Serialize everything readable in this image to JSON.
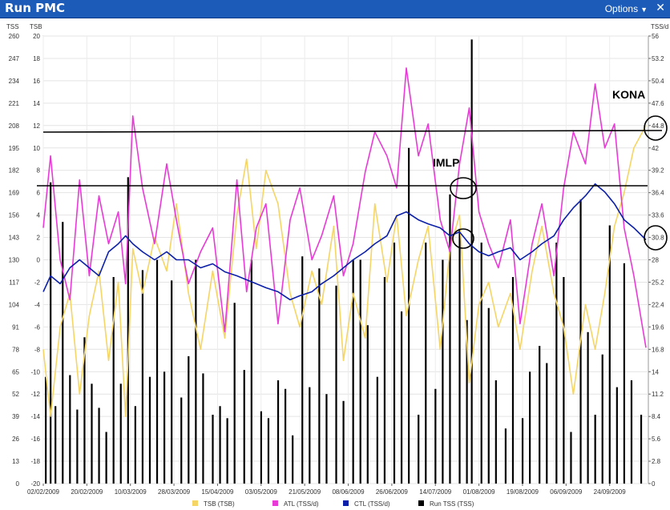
{
  "window": {
    "title": "Run PMC",
    "options_label": "Options",
    "close_glyph": "✕"
  },
  "chart_data": {
    "type": "line",
    "axes": {
      "tss_left": {
        "label": "TSS",
        "min": 0,
        "max": 260,
        "ticks": [
          0,
          13,
          26,
          39,
          52,
          65,
          78,
          91,
          104,
          117,
          130,
          143,
          156,
          169,
          182,
          195,
          208,
          221,
          234,
          247,
          260
        ]
      },
      "tsb_left": {
        "label": "TSB",
        "min": -20,
        "max": 20,
        "ticks": [
          -20,
          -18,
          -16,
          -14,
          -12,
          -10,
          -8,
          -6,
          -4,
          -2,
          0,
          2,
          4,
          6,
          8,
          10,
          12,
          14,
          16,
          18,
          20
        ]
      },
      "tssd_right": {
        "label": "TSS/d",
        "min": 0,
        "max": 56,
        "ticks": [
          "0",
          "2.8",
          "5.6",
          "8.4",
          "11.2",
          "14",
          "16.8",
          "19.6",
          "22.4",
          "25.2",
          "28",
          "30.8",
          "33.6",
          "36.4",
          "39.2",
          "42",
          "44.8",
          "47.6",
          "50.4",
          "53.2",
          "56"
        ]
      }
    },
    "x_range": [
      "2009-02-02",
      "2009-10-10"
    ],
    "x_tick_labels": [
      "02/02/2009",
      "20/02/2009",
      "10/03/2009",
      "28/03/2009",
      "15/04/2009",
      "03/05/2009",
      "21/05/2009",
      "08/06/2009",
      "26/06/2009",
      "14/07/2009",
      "01/08/2009",
      "19/08/2009",
      "06/09/2009",
      "24/09/2009"
    ],
    "series": [
      {
        "name": "TSB (TSB)",
        "color": "#f5d565",
        "axis": "tsb_left",
        "x": [
          "2009-02-02",
          "2009-02-05",
          "2009-02-09",
          "2009-02-13",
          "2009-02-17",
          "2009-02-21",
          "2009-02-25",
          "2009-03-01",
          "2009-03-05",
          "2009-03-08",
          "2009-03-11",
          "2009-03-15",
          "2009-03-20",
          "2009-03-25",
          "2009-03-29",
          "2009-04-03",
          "2009-04-08",
          "2009-04-13",
          "2009-04-18",
          "2009-04-23",
          "2009-04-27",
          "2009-05-01",
          "2009-05-05",
          "2009-05-10",
          "2009-05-15",
          "2009-05-19",
          "2009-05-24",
          "2009-05-28",
          "2009-06-02",
          "2009-06-06",
          "2009-06-10",
          "2009-06-15",
          "2009-06-19",
          "2009-06-24",
          "2009-06-28",
          "2009-07-02",
          "2009-07-07",
          "2009-07-11",
          "2009-07-16",
          "2009-07-20",
          "2009-07-24",
          "2009-07-28",
          "2009-08-01",
          "2009-08-05",
          "2009-08-09",
          "2009-08-14",
          "2009-08-18",
          "2009-08-23",
          "2009-08-27",
          "2009-09-01",
          "2009-09-05",
          "2009-09-09",
          "2009-09-14",
          "2009-09-18",
          "2009-09-22",
          "2009-09-26",
          "2009-09-30",
          "2009-10-04",
          "2009-10-09"
        ],
        "values": [
          -8,
          -14,
          -6,
          -3,
          -12,
          -5,
          -1,
          -9,
          -2,
          -14,
          1,
          -3,
          2,
          -1,
          5,
          -3,
          -8,
          -1,
          -7,
          4,
          9,
          1,
          8,
          5,
          -3,
          -6,
          -1,
          -4,
          3,
          -9,
          -3,
          -7,
          5,
          -2,
          4,
          -5,
          0,
          3,
          -8,
          1,
          4,
          -11,
          -4,
          -2,
          -6,
          -3,
          -8,
          -1,
          3,
          -3,
          -6,
          -12,
          -4,
          -8,
          -3,
          3,
          6,
          10,
          12
        ]
      },
      {
        "name": "ATL (TSS/d)",
        "color": "#e83ad6",
        "axis": "tssd_right",
        "x": [
          "2009-02-02",
          "2009-02-05",
          "2009-02-09",
          "2009-02-13",
          "2009-02-17",
          "2009-02-21",
          "2009-02-25",
          "2009-03-01",
          "2009-03-05",
          "2009-03-08",
          "2009-03-11",
          "2009-03-15",
          "2009-03-20",
          "2009-03-25",
          "2009-03-29",
          "2009-04-03",
          "2009-04-08",
          "2009-04-13",
          "2009-04-18",
          "2009-04-23",
          "2009-04-27",
          "2009-05-01",
          "2009-05-05",
          "2009-05-10",
          "2009-05-15",
          "2009-05-19",
          "2009-05-24",
          "2009-05-28",
          "2009-06-02",
          "2009-06-06",
          "2009-06-10",
          "2009-06-15",
          "2009-06-19",
          "2009-06-24",
          "2009-06-28",
          "2009-07-02",
          "2009-07-07",
          "2009-07-11",
          "2009-07-16",
          "2009-07-20",
          "2009-07-24",
          "2009-07-28",
          "2009-08-01",
          "2009-08-05",
          "2009-08-09",
          "2009-08-14",
          "2009-08-18",
          "2009-08-23",
          "2009-08-27",
          "2009-09-01",
          "2009-09-05",
          "2009-09-09",
          "2009-09-14",
          "2009-09-18",
          "2009-09-22",
          "2009-09-26",
          "2009-09-30",
          "2009-10-04",
          "2009-10-09"
        ],
        "values": [
          32,
          41,
          28,
          23,
          38,
          26,
          36,
          30,
          34,
          25,
          46,
          37,
          30,
          40,
          33,
          25,
          29,
          32,
          19,
          38,
          24,
          32,
          35,
          20,
          33,
          37,
          28,
          31,
          36,
          26,
          30,
          39,
          44,
          41,
          37,
          52,
          41,
          45,
          33,
          29,
          40,
          47,
          34,
          30,
          27,
          33,
          20,
          30,
          35,
          26,
          37,
          44,
          40,
          50,
          42,
          45,
          32,
          26,
          17
        ]
      },
      {
        "name": "CTL (TSS/d)",
        "color": "#0b1fa8",
        "axis": "tssd_right",
        "x": [
          "2009-02-02",
          "2009-02-05",
          "2009-02-09",
          "2009-02-13",
          "2009-02-17",
          "2009-02-21",
          "2009-02-25",
          "2009-03-01",
          "2009-03-05",
          "2009-03-08",
          "2009-03-11",
          "2009-03-15",
          "2009-03-20",
          "2009-03-25",
          "2009-03-29",
          "2009-04-03",
          "2009-04-08",
          "2009-04-13",
          "2009-04-18",
          "2009-04-23",
          "2009-04-27",
          "2009-05-01",
          "2009-05-05",
          "2009-05-10",
          "2009-05-15",
          "2009-05-19",
          "2009-05-24",
          "2009-05-28",
          "2009-06-02",
          "2009-06-06",
          "2009-06-10",
          "2009-06-15",
          "2009-06-19",
          "2009-06-24",
          "2009-06-28",
          "2009-07-02",
          "2009-07-07",
          "2009-07-11",
          "2009-07-16",
          "2009-07-20",
          "2009-07-24",
          "2009-07-28",
          "2009-08-01",
          "2009-08-05",
          "2009-08-09",
          "2009-08-14",
          "2009-08-18",
          "2009-08-23",
          "2009-08-27",
          "2009-09-01",
          "2009-09-05",
          "2009-09-09",
          "2009-09-14",
          "2009-09-18",
          "2009-09-22",
          "2009-09-26",
          "2009-09-30",
          "2009-10-04",
          "2009-10-09"
        ],
        "values": [
          24,
          26,
          25,
          27,
          28,
          27,
          26,
          29,
          30,
          31,
          30,
          29,
          28,
          29,
          28,
          28,
          27,
          27.5,
          26.5,
          26,
          25.5,
          25,
          24.5,
          24,
          23,
          23.5,
          24,
          25,
          26,
          27,
          28,
          29,
          30,
          31,
          33.5,
          34,
          33,
          32.5,
          32,
          31,
          31.5,
          30,
          29,
          28.5,
          29,
          29.5,
          28,
          29,
          30,
          31,
          33,
          34.5,
          36,
          37.5,
          36.5,
          35,
          33,
          32,
          30.5
        ]
      },
      {
        "name": "Run TSS (TSS)",
        "color": "#000000",
        "axis": "tss_left",
        "type": "bar",
        "x": [
          "2009-02-03",
          "2009-02-05",
          "2009-02-07",
          "2009-02-10",
          "2009-02-13",
          "2009-02-16",
          "2009-02-19",
          "2009-02-22",
          "2009-02-25",
          "2009-02-28",
          "2009-03-03",
          "2009-03-06",
          "2009-03-09",
          "2009-03-12",
          "2009-03-15",
          "2009-03-18",
          "2009-03-21",
          "2009-03-24",
          "2009-03-27",
          "2009-03-31",
          "2009-04-03",
          "2009-04-06",
          "2009-04-09",
          "2009-04-13",
          "2009-04-16",
          "2009-04-19",
          "2009-04-22",
          "2009-04-26",
          "2009-04-29",
          "2009-05-03",
          "2009-05-06",
          "2009-05-10",
          "2009-05-13",
          "2009-05-16",
          "2009-05-20",
          "2009-05-23",
          "2009-05-27",
          "2009-05-30",
          "2009-06-03",
          "2009-06-06",
          "2009-06-10",
          "2009-06-13",
          "2009-06-16",
          "2009-06-20",
          "2009-06-23",
          "2009-06-27",
          "2009-06-30",
          "2009-07-03",
          "2009-07-07",
          "2009-07-10",
          "2009-07-14",
          "2009-07-17",
          "2009-07-20",
          "2009-07-24",
          "2009-07-27",
          "2009-07-29",
          "2009-08-02",
          "2009-08-05",
          "2009-08-08",
          "2009-08-12",
          "2009-08-15",
          "2009-08-19",
          "2009-08-22",
          "2009-08-26",
          "2009-08-29",
          "2009-09-02",
          "2009-09-05",
          "2009-09-08",
          "2009-09-12",
          "2009-09-15",
          "2009-09-18",
          "2009-09-21",
          "2009-09-24",
          "2009-09-27",
          "2009-09-30",
          "2009-10-03",
          "2009-10-07"
        ],
        "values": [
          62,
          175,
          45,
          152,
          63,
          43,
          85,
          58,
          44,
          30,
          120,
          58,
          178,
          45,
          124,
          62,
          130,
          65,
          118,
          50,
          74,
          130,
          64,
          40,
          45,
          38,
          105,
          66,
          130,
          42,
          38,
          60,
          55,
          28,
          132,
          56,
          125,
          52,
          115,
          48,
          130,
          130,
          92,
          62,
          120,
          140,
          100,
          195,
          40,
          140,
          55,
          130,
          168,
          148,
          95,
          258,
          140,
          102,
          60,
          32,
          120,
          38,
          65,
          80,
          70,
          140,
          120,
          30,
          165,
          88,
          40,
          75,
          150,
          56,
          128,
          60,
          40
        ]
      }
    ],
    "annotations": [
      "IMLP",
      "KONA"
    ],
    "grid": true,
    "legend_position": "bottom"
  }
}
